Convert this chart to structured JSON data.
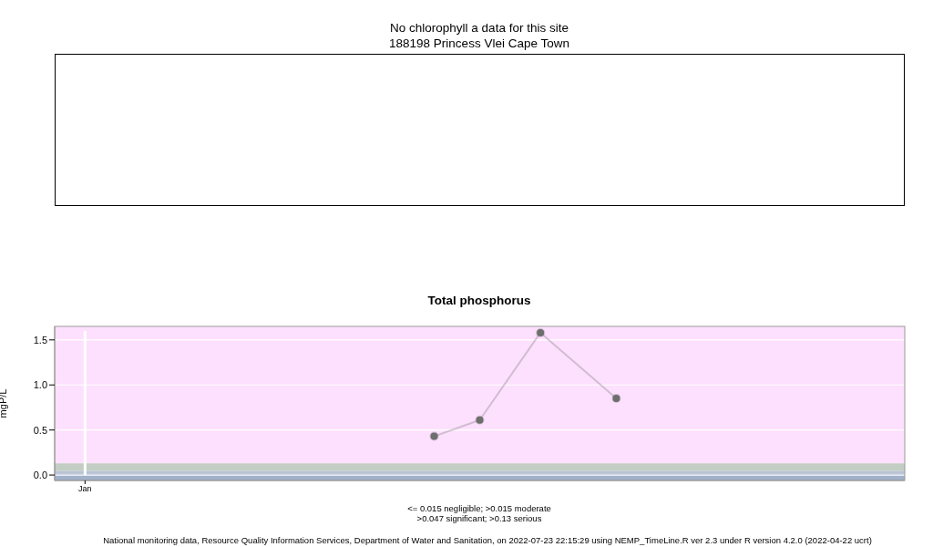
{
  "chart_data": [
    {
      "type": "other",
      "title": "No chlorophyll a data for this site",
      "subtitle": "188198 Princess Vlei Cape Town"
    },
    {
      "type": "line",
      "title": "Total phosphorus",
      "ylabel": "mgP/L",
      "categories": [
        null,
        null,
        "Jan",
        null,
        null,
        null,
        null,
        null,
        null,
        null,
        null,
        null,
        null,
        null,
        null,
        null,
        null,
        null,
        null,
        null,
        null,
        null,
        null,
        null,
        null,
        null,
        null,
        null,
        null,
        null,
        null,
        null,
        null,
        null,
        null,
        null,
        null,
        null,
        null,
        null,
        null,
        null,
        null,
        null,
        null,
        null,
        null,
        null,
        null,
        null,
        null,
        null,
        null,
        null,
        null,
        null,
        null
      ],
      "series": [
        {
          "color": "#6e6e6e",
          "values": [
            null,
            null,
            null,
            null,
            null,
            null,
            null,
            null,
            null,
            null,
            null,
            null,
            null,
            null,
            null,
            null,
            null,
            null,
            null,
            null,
            null,
            null,
            null,
            null,
            null,
            0.43,
            null,
            null,
            0.61,
            null,
            null,
            null,
            1.58,
            null,
            null,
            null,
            null,
            0.85,
            null,
            null,
            null,
            null,
            null,
            null,
            null,
            null,
            null,
            null,
            null,
            null,
            null,
            null,
            null,
            null,
            null,
            null,
            null
          ]
        }
      ],
      "marker": "circle",
      "line_style": "solid",
      "grid": true,
      "ylim": [
        -0.06,
        1.65
      ],
      "yticks": [
        {
          "value": 0,
          "label": "0.0"
        },
        {
          "value": 0.5,
          "label": "0.5"
        },
        {
          "value": 1,
          "label": "1.0"
        },
        {
          "value": 1.5,
          "label": "1.5"
        }
      ],
      "bands": [
        {
          "axis": "y",
          "from": 0.13,
          "to": 1.65,
          "color": "#fde0fd"
        },
        {
          "axis": "y",
          "from": 0.047,
          "to": 0.13,
          "color": "#c4cdc3"
        },
        {
          "axis": "y",
          "from": 0.015,
          "to": 0.047,
          "color": "#b8c4d3"
        },
        {
          "axis": "y",
          "from": -0.06,
          "to": 0.015,
          "color": "#a2b1ca"
        }
      ],
      "annotations": [
        "<= 0.015 negligible; >0.015 moderate",
        ">0.047 significant; >0.13 serious",
        "National monitoring data, Resource Quality Information Services, Department of Water and Sanitation, on 2022-07-23 22:15:29 using NEMP_TimeLine.R ver 2.3 under R version 4.2.0 (2022-04-22 ucrt)"
      ]
    }
  ]
}
